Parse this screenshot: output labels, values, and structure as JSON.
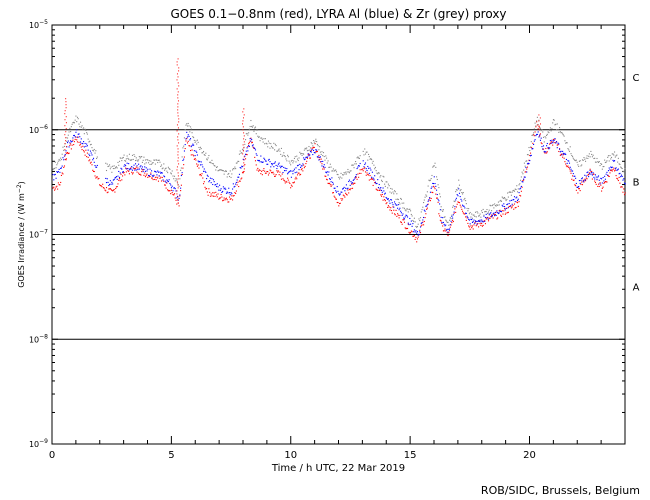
{
  "chart_data": {
    "type": "scatter",
    "title": "GOES 0.1−0.8nm (red), LYRA Al (blue) & Zr (grey) proxy",
    "xlabel": "Time / h UTC, 22 Mar 2019",
    "ylabel_prefix": "GOES Irradiance / (W m",
    "ylabel_exp": "−2",
    "ylabel_suffix": ")",
    "xlim": [
      0,
      24
    ],
    "ylim_log10": [
      -9,
      -5
    ],
    "yscale": "log",
    "x_ticks": [
      0,
      5,
      10,
      15,
      20
    ],
    "x_tick_labels": [
      "0",
      "5",
      "10",
      "15",
      "20"
    ],
    "y_ticks": [
      {
        "value": "1e-9",
        "base": "10",
        "exp": "−9"
      },
      {
        "value": "1e-8",
        "base": "10",
        "exp": "−8"
      },
      {
        "value": "1e-7",
        "base": "10",
        "exp": "−7"
      },
      {
        "value": "1e-6",
        "base": "10",
        "exp": "−6"
      },
      {
        "value": "1e-5",
        "base": "10",
        "exp": "−5"
      }
    ],
    "class_lines": [
      1e-08,
      1e-07,
      1e-06
    ],
    "class_labels": [
      {
        "label": "A",
        "value": 3.2e-08
      },
      {
        "label": "B",
        "value": 3.2e-07
      },
      {
        "label": "C",
        "value": 3.2e-06
      }
    ],
    "anchors_x": [
      0,
      0.3,
      0.6,
      1.0,
      1.5,
      2.0,
      2.5,
      3.0,
      3.5,
      4.0,
      4.5,
      5.0,
      5.3,
      5.6,
      6.0,
      6.5,
      7.0,
      7.5,
      8.0,
      8.3,
      8.6,
      9.0,
      9.5,
      10.0,
      10.5,
      11.0,
      11.5,
      12.0,
      12.5,
      13.0,
      13.5,
      14.0,
      14.5,
      15.0,
      15.3,
      15.6,
      16.0,
      16.3,
      16.6,
      17.0,
      17.5,
      18.0,
      18.5,
      19.0,
      19.5,
      20.0,
      20.3,
      20.6,
      21.0,
      21.5,
      22.0,
      22.5,
      23.0,
      23.5,
      24.0
    ],
    "series": [
      {
        "name": "GOES 0.1-0.8nm",
        "color": "#ff0000",
        "values": [
          2.8e-07,
          3e-07,
          6e-07,
          8.5e-07,
          5.5e-07,
          3e-07,
          2.5e-07,
          4e-07,
          4.2e-07,
          3.8e-07,
          3.5e-07,
          2.6e-07,
          1.9e-07,
          8e-07,
          5e-07,
          2.6e-07,
          2.3e-07,
          2.2e-07,
          4e-07,
          9e-07,
          4e-07,
          4e-07,
          3.8e-07,
          3e-07,
          4.5e-07,
          7e-07,
          3.5e-07,
          2e-07,
          2.8e-07,
          4.5e-07,
          3e-07,
          2e-07,
          1.5e-07,
          1.1e-07,
          9e-08,
          1.5e-07,
          3e-07,
          1.2e-07,
          1e-07,
          2.2e-07,
          1.2e-07,
          1.3e-07,
          1.5e-07,
          1.7e-07,
          2e-07,
          6e-07,
          1.2e-06,
          6e-07,
          8e-07,
          5e-07,
          2.6e-07,
          4e-07,
          2.8e-07,
          4.5e-07,
          2.3e-07
        ]
      },
      {
        "name": "LYRA Al proxy",
        "color": "#0000ff",
        "values": [
          3.5e-07,
          4e-07,
          7e-07,
          9.5e-07,
          6.5e-07,
          3.8e-07,
          3e-07,
          4.5e-07,
          4.5e-07,
          4e-07,
          3.8e-07,
          3e-07,
          2.2e-07,
          9.5e-07,
          6e-07,
          3.5e-07,
          2.8e-07,
          2.6e-07,
          5e-07,
          8e-07,
          5.5e-07,
          5e-07,
          4.5e-07,
          3.8e-07,
          5e-07,
          6.5e-07,
          4e-07,
          2.5e-07,
          3.2e-07,
          5e-07,
          3.5e-07,
          2.3e-07,
          1.8e-07,
          1.3e-07,
          1e-07,
          1.7e-07,
          3.5e-07,
          1.4e-07,
          1.1e-07,
          2.6e-07,
          1.3e-07,
          1.4e-07,
          1.6e-07,
          1.9e-07,
          2.3e-07,
          5.5e-07,
          1e-06,
          6.5e-07,
          8e-07,
          5.5e-07,
          3e-07,
          4e-07,
          3.2e-07,
          5e-07,
          3e-07
        ]
      },
      {
        "name": "LYRA Zr proxy",
        "color": "#888888",
        "values": [
          4.5e-07,
          5e-07,
          8.5e-07,
          1.3e-06,
          8.5e-07,
          4.8e-07,
          4.2e-07,
          5.5e-07,
          5.5e-07,
          5e-07,
          4.8e-07,
          4e-07,
          3e-07,
          1.2e-06,
          8e-07,
          5.5e-07,
          4e-07,
          3.8e-07,
          7e-07,
          1.2e-06,
          9e-07,
          7.5e-07,
          6.5e-07,
          5e-07,
          6e-07,
          8e-07,
          5e-07,
          3.5e-07,
          4.2e-07,
          6.5e-07,
          4.5e-07,
          3e-07,
          2.2e-07,
          1.6e-07,
          1.2e-07,
          2.2e-07,
          5e-07,
          1.8e-07,
          1.2e-07,
          3.2e-07,
          1.5e-07,
          1.6e-07,
          1.9e-07,
          2.3e-07,
          2.8e-07,
          7e-07,
          1.3e-06,
          8e-07,
          1.2e-06,
          8e-07,
          4.5e-07,
          6e-07,
          4.5e-07,
          6e-07,
          4e-07
        ]
      }
    ],
    "spikes": [
      {
        "series": 0,
        "x": 5.25,
        "value": 4.8e-06
      },
      {
        "series": 0,
        "x": 8.0,
        "value": 1.6e-06
      },
      {
        "series": 0,
        "x": 0.55,
        "value": 2e-06
      },
      {
        "series": 0,
        "x": 20.4,
        "value": 1.4e-06
      }
    ]
  },
  "credit": "ROB/SIDC, Brussels, Belgium"
}
